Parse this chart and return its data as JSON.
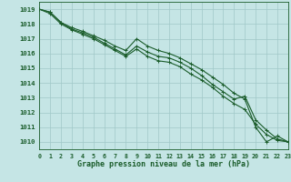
{
  "bg_color": "#c5e5e5",
  "grid_color": "#a0c8c8",
  "line_color": "#1a5c2a",
  "xlabel": "Graphe pression niveau de la mer (hPa)",
  "xlim": [
    0,
    23
  ],
  "ylim": [
    1009.5,
    1019.5
  ],
  "yticks": [
    1010,
    1011,
    1012,
    1013,
    1014,
    1015,
    1016,
    1017,
    1018,
    1019
  ],
  "xticks": [
    0,
    1,
    2,
    3,
    4,
    5,
    6,
    7,
    8,
    9,
    10,
    11,
    12,
    13,
    14,
    15,
    16,
    17,
    18,
    19,
    20,
    21,
    22,
    23
  ],
  "line1": [
    1019.0,
    1018.8,
    1018.1,
    1017.75,
    1017.5,
    1017.2,
    1016.9,
    1016.5,
    1016.2,
    1017.0,
    1016.5,
    1016.2,
    1016.0,
    1015.7,
    1015.3,
    1014.9,
    1014.4,
    1013.9,
    1013.3,
    1012.9,
    1011.0,
    1010.0,
    1010.4,
    1010.0
  ],
  "line2": [
    1019.0,
    1018.8,
    1018.1,
    1017.65,
    1017.4,
    1017.1,
    1016.7,
    1016.3,
    1015.9,
    1016.5,
    1016.1,
    1015.8,
    1015.7,
    1015.4,
    1015.0,
    1014.5,
    1013.9,
    1013.4,
    1012.9,
    1013.1,
    1011.5,
    1010.8,
    1010.2,
    1010.0
  ],
  "line3": [
    1019.0,
    1018.7,
    1018.0,
    1017.6,
    1017.3,
    1017.0,
    1016.6,
    1016.2,
    1015.8,
    1016.3,
    1015.8,
    1015.5,
    1015.4,
    1015.1,
    1014.6,
    1014.2,
    1013.7,
    1013.1,
    1012.6,
    1012.2,
    1011.2,
    1010.5,
    1010.1,
    1010.0
  ],
  "xlabel_fontsize": 6.0,
  "tick_fontsize": 4.8,
  "ytick_fontsize": 5.2
}
